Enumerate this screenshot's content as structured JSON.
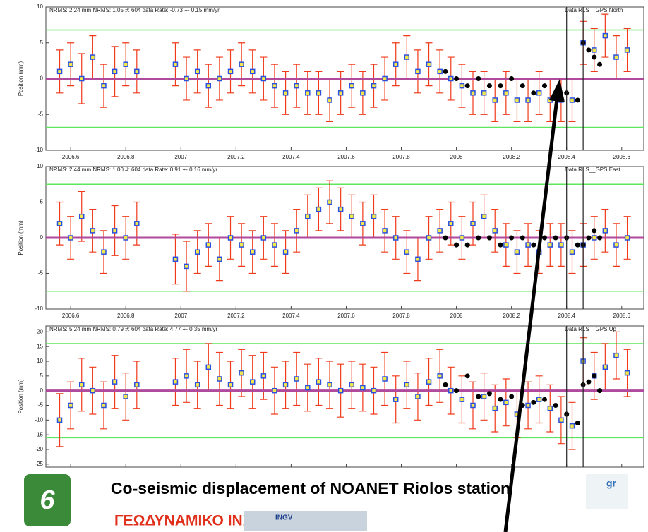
{
  "chart_data": [
    {
      "type": "scatter",
      "title": "Data RLS__GPS North",
      "subtitle": "NRMS: 2.24 mm NRMS: 1.05 #: 604 data Rate: -0.73 +- 0.15 mm/yr",
      "ylabel": "Position (mm)",
      "xlim": [
        2006.51,
        2008.68
      ],
      "ylim": [
        -10,
        10
      ],
      "xticks": [
        2006.6,
        2006.8,
        2007,
        2007.2,
        2007.4,
        2007.6,
        2007.8,
        2008,
        2008.2,
        2008.4,
        2008.6
      ],
      "yticks": [
        -10,
        -5,
        0,
        5,
        10
      ],
      "limit_lines": [
        6.8,
        -6.8
      ],
      "limit_color": "#5ee65e",
      "zero_line": 0,
      "zero_color": "#b04a9c",
      "event_xlim": [
        2008.4,
        2008.46
      ],
      "series": [
        {
          "color": "#2b50e0",
          "marker_fill": "#f2e84a",
          "error_color": "#f03a1a",
          "x": [
            2006.56,
            2006.6,
            2006.64,
            2006.68,
            2006.72,
            2006.76,
            2006.8,
            2006.84,
            2006.98,
            2007.02,
            2007.06,
            2007.1,
            2007.14,
            2007.18,
            2007.22,
            2007.26,
            2007.3,
            2007.34,
            2007.38,
            2007.42,
            2007.46,
            2007.5,
            2007.54,
            2007.58,
            2007.62,
            2007.66,
            2007.7,
            2007.74,
            2007.78,
            2007.82,
            2007.86,
            2007.9,
            2007.94,
            2007.98,
            2008.02,
            2008.06,
            2008.1,
            2008.14,
            2008.18,
            2008.22,
            2008.26,
            2008.3,
            2008.34,
            2008.38,
            2008.42,
            2008.46,
            2008.5,
            2008.54,
            2008.58,
            2008.62
          ],
          "values": [
            1,
            2,
            0,
            3,
            -1,
            1,
            2,
            1,
            2,
            0,
            1,
            -1,
            0,
            1,
            2,
            1,
            0,
            -1,
            -2,
            -1,
            -2,
            -2,
            -3,
            -2,
            -1,
            -2,
            -1,
            0,
            2,
            3,
            1,
            2,
            1,
            0,
            -1,
            -2,
            -2,
            -3,
            -2,
            -3,
            -3,
            -2,
            -3,
            -3,
            -3,
            5,
            4,
            6,
            3,
            4
          ],
          "errors": [
            3,
            3,
            3.5,
            3,
            3,
            3.5,
            3,
            3,
            3,
            3,
            3,
            3,
            3,
            3,
            3,
            3,
            3,
            3,
            3,
            3,
            3,
            3,
            3,
            3,
            3,
            3,
            3,
            3,
            3,
            3,
            3,
            3,
            3,
            3,
            3,
            3,
            3,
            3,
            3,
            3,
            3,
            3,
            3,
            3,
            3,
            3,
            3,
            3,
            3,
            3
          ]
        },
        {
          "color": "#000000",
          "x": [
            2007.96,
            2008,
            2008.04,
            2008.08,
            2008.12,
            2008.16,
            2008.2,
            2008.24,
            2008.28,
            2008.32,
            2008.36,
            2008.4,
            2008.44,
            2008.46,
            2008.48,
            2008.5,
            2008.52
          ],
          "values": [
            1,
            0,
            -1,
            0,
            -1,
            -1,
            0,
            -1,
            -2,
            -1,
            -2,
            -2,
            -3,
            5,
            4,
            3,
            2
          ]
        }
      ]
    },
    {
      "type": "scatter",
      "title": "Data RLS__GPS East",
      "subtitle": "NRMS: 2.44 mm NRMS: 1.00 #: 604 data Rate: 0.91 +- 0.16 mm/yr",
      "ylabel": "Position (mm)",
      "xlim": [
        2006.51,
        2008.68
      ],
      "ylim": [
        -10,
        10
      ],
      "xticks": [
        2006.6,
        2006.8,
        2007,
        2007.2,
        2007.4,
        2007.6,
        2007.8,
        2008,
        2008.2,
        2008.4,
        2008.6
      ],
      "yticks": [
        -10,
        -5,
        0,
        5,
        10
      ],
      "limit_lines": [
        7.5,
        -7.5
      ],
      "limit_color": "#5ee65e",
      "zero_line": 0,
      "zero_color": "#b04a9c",
      "event_xlim": [
        2008.4,
        2008.46
      ],
      "series": [
        {
          "color": "#2b50e0",
          "marker_fill": "#f2e84a",
          "error_color": "#f03a1a",
          "x": [
            2006.56,
            2006.6,
            2006.64,
            2006.68,
            2006.72,
            2006.76,
            2006.8,
            2006.84,
            2006.98,
            2007.02,
            2007.06,
            2007.1,
            2007.14,
            2007.18,
            2007.22,
            2007.26,
            2007.3,
            2007.34,
            2007.38,
            2007.42,
            2007.46,
            2007.5,
            2007.54,
            2007.58,
            2007.62,
            2007.66,
            2007.7,
            2007.74,
            2007.78,
            2007.82,
            2007.86,
            2007.9,
            2007.94,
            2007.98,
            2008.02,
            2008.06,
            2008.1,
            2008.14,
            2008.18,
            2008.22,
            2008.26,
            2008.3,
            2008.34,
            2008.38,
            2008.42,
            2008.46,
            2008.5,
            2008.54,
            2008.58,
            2008.62
          ],
          "values": [
            2,
            0,
            3,
            1,
            -2,
            1,
            0,
            2,
            -3,
            -4,
            -2,
            -1,
            -3,
            0,
            -1,
            -2,
            0,
            -1,
            -2,
            1,
            3,
            4,
            5,
            4,
            3,
            2,
            3,
            1,
            0,
            -2,
            -3,
            0,
            1,
            2,
            0,
            2,
            3,
            1,
            -1,
            -2,
            -1,
            -2,
            -1,
            -1,
            -2,
            -1,
            0,
            1,
            -1,
            0
          ],
          "errors": [
            3,
            3,
            3.5,
            3,
            3,
            3.5,
            3,
            3,
            3.5,
            3.5,
            3,
            3,
            3,
            3,
            3,
            3,
            3,
            3,
            3,
            3,
            3,
            3,
            3,
            3,
            3,
            3,
            3,
            3,
            3,
            3,
            3,
            3,
            3,
            3,
            3,
            3,
            3,
            3,
            3,
            3,
            3,
            3,
            3,
            3,
            3,
            3,
            3,
            3,
            3,
            3
          ]
        },
        {
          "color": "#000000",
          "x": [
            2007.96,
            2008,
            2008.04,
            2008.08,
            2008.12,
            2008.16,
            2008.2,
            2008.24,
            2008.28,
            2008.32,
            2008.36,
            2008.4,
            2008.44,
            2008.46,
            2008.48,
            2008.5,
            2008.52
          ],
          "values": [
            0,
            -1,
            -1,
            0,
            0,
            -1,
            0,
            0,
            -1,
            0,
            0,
            0,
            -1,
            -1,
            0,
            1,
            0
          ]
        }
      ]
    },
    {
      "type": "scatter",
      "title": "Data RLS__GPS Up",
      "subtitle": "NRMS: 5.24 mm NRMS: 0.79 #: 604 data Rate: 4.77 +- 0.35 mm/yr",
      "ylabel": "Position (mm)",
      "xlim": [
        2006.51,
        2008.68
      ],
      "ylim": [
        -26,
        22
      ],
      "xticks": [
        2006.6,
        2006.8,
        2007,
        2007.2,
        2007.4,
        2007.6,
        2007.8,
        2008,
        2008.2,
        2008.4,
        2008.6
      ],
      "yticks": [
        -25,
        -20,
        -15,
        -10,
        -5,
        0,
        5,
        10,
        15,
        20
      ],
      "limit_lines": [
        16,
        -16
      ],
      "limit_color": "#5ee65e",
      "zero_line": 0,
      "zero_color": "#b04a9c",
      "event_xlim": [
        2008.4,
        2008.46
      ],
      "series": [
        {
          "color": "#2b50e0",
          "marker_fill": "#f2e84a",
          "error_color": "#f03a1a",
          "x": [
            2006.56,
            2006.6,
            2006.64,
            2006.68,
            2006.72,
            2006.76,
            2006.8,
            2006.84,
            2006.98,
            2007.02,
            2007.06,
            2007.1,
            2007.14,
            2007.18,
            2007.22,
            2007.26,
            2007.3,
            2007.34,
            2007.38,
            2007.42,
            2007.46,
            2007.5,
            2007.54,
            2007.58,
            2007.62,
            2007.66,
            2007.7,
            2007.74,
            2007.78,
            2007.82,
            2007.86,
            2007.9,
            2007.94,
            2007.98,
            2008.02,
            2008.06,
            2008.1,
            2008.14,
            2008.18,
            2008.22,
            2008.26,
            2008.3,
            2008.34,
            2008.38,
            2008.42,
            2008.46,
            2008.5,
            2008.54,
            2008.58,
            2008.62
          ],
          "values": [
            -10,
            -5,
            2,
            0,
            -5,
            3,
            -2,
            2,
            3,
            5,
            2,
            8,
            4,
            2,
            6,
            3,
            5,
            0,
            2,
            4,
            1,
            3,
            2,
            0,
            2,
            1,
            0,
            4,
            -3,
            2,
            -2,
            3,
            5,
            0,
            -3,
            -5,
            -2,
            -6,
            -4,
            -8,
            -5,
            -3,
            -6,
            -10,
            -12,
            10,
            5,
            8,
            12,
            6
          ],
          "errors": [
            9,
            8,
            9,
            8,
            8,
            9,
            8,
            8,
            8,
            9,
            8,
            8,
            9,
            8,
            8,
            9,
            8,
            8,
            8,
            9,
            8,
            8,
            8,
            9,
            8,
            8,
            8,
            9,
            8,
            8,
            8,
            8,
            9,
            8,
            8,
            8,
            8,
            8,
            8,
            8,
            8,
            8,
            8,
            8,
            8,
            8,
            8,
            8,
            8,
            8
          ]
        },
        {
          "color": "#000000",
          "x": [
            2007.96,
            2008,
            2008.04,
            2008.08,
            2008.12,
            2008.16,
            2008.2,
            2008.24,
            2008.28,
            2008.32,
            2008.36,
            2008.4,
            2008.44,
            2008.46,
            2008.48,
            2008.5,
            2008.52
          ],
          "values": [
            2,
            0,
            5,
            -2,
            -1,
            -3,
            -2,
            -5,
            -4,
            -3,
            -5,
            -8,
            -11,
            2,
            3,
            5,
            0
          ]
        }
      ]
    }
  ],
  "banner": {
    "title": "Co-seismic displacement of NOANET Riolos station",
    "institute": "ΓΕΩΔΥΝΑΜΙΚΟ ΙΝΣΤΙΤΟΥΤΟ",
    "logo_left": "6",
    "logo_ingv": "INGV",
    "logo_right": "gr"
  }
}
